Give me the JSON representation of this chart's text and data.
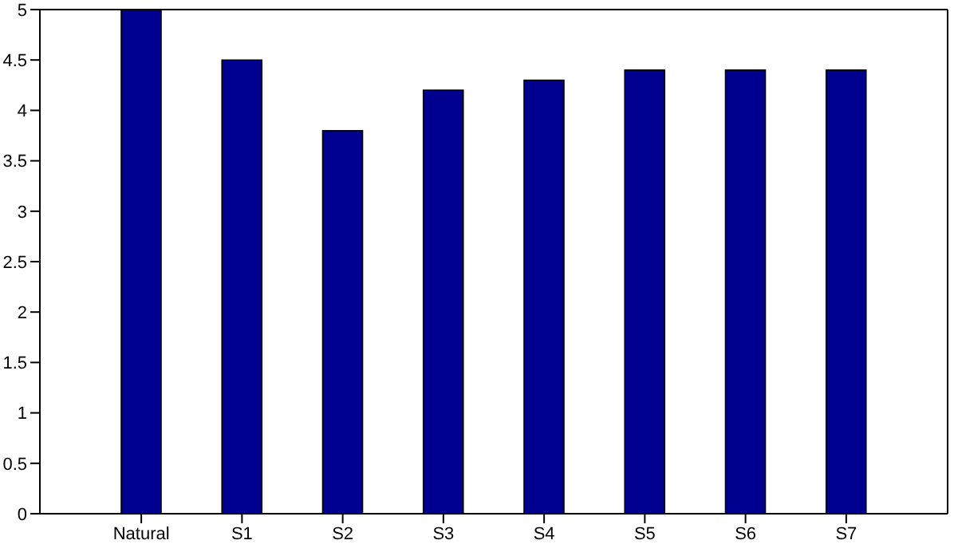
{
  "chart_data": {
    "type": "bar",
    "categories": [
      "Natural",
      "S1",
      "S2",
      "S3",
      "S4",
      "S5",
      "S6",
      "S7"
    ],
    "values": [
      5,
      4.5,
      3.8,
      4.2,
      4.3,
      4.4,
      4.4,
      4.4
    ],
    "color": "#00008f",
    "ylim": [
      0,
      5
    ],
    "yticks": [
      0,
      0.5,
      1,
      1.5,
      2,
      2.5,
      3,
      3.5,
      4,
      4.5,
      5
    ],
    "grid": false
  }
}
